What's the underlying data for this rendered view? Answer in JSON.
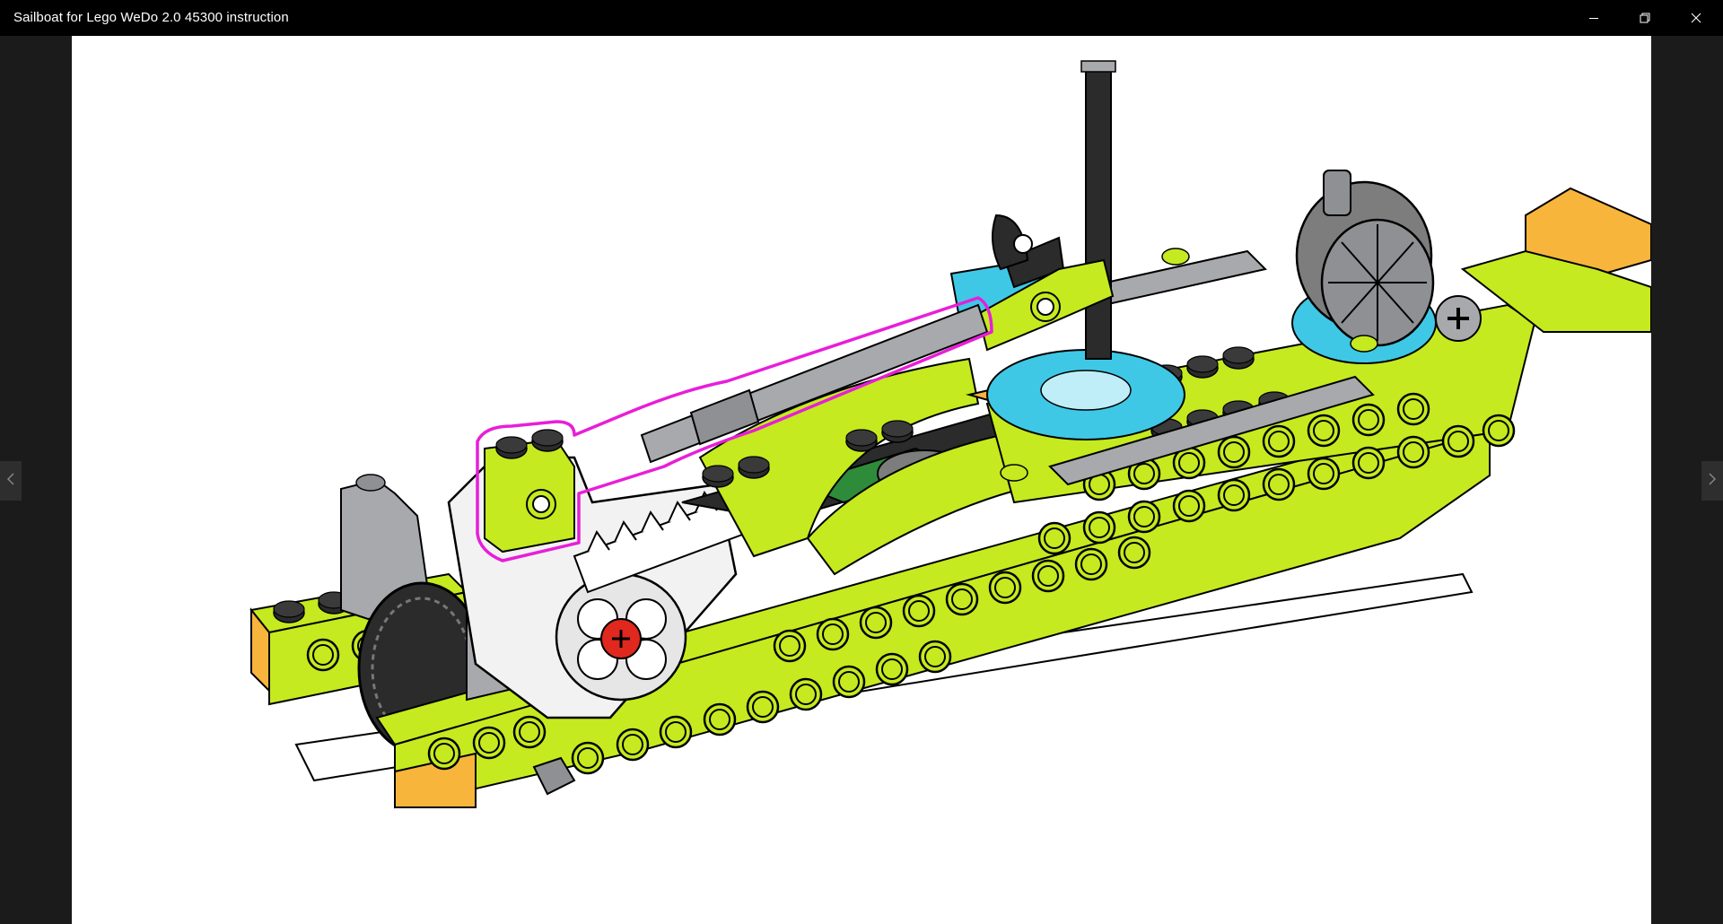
{
  "window": {
    "title": "Sailboat for Lego WeDo 2.0 45300 instruction"
  },
  "titlebar_buttons": [
    {
      "name": "minimize",
      "icon": "minimize-icon"
    },
    {
      "name": "maximize",
      "icon": "restore-icon"
    },
    {
      "name": "close",
      "icon": "close-icon"
    }
  ],
  "navigation": {
    "previous_icon": "chevron-left-icon",
    "next_icon": "chevron-right-icon"
  },
  "image": {
    "subject": "lego-sailboat-build-step",
    "highlight_color": "#e81ed8",
    "brick_colors": {
      "lime": "#c5ea1f",
      "orange": "#f8b53c",
      "azure": "#3ec8e6",
      "gray": "#a7a9ac",
      "dark": "#2b2b2b",
      "green": "#2e8b3a",
      "red": "#e0281e"
    }
  }
}
